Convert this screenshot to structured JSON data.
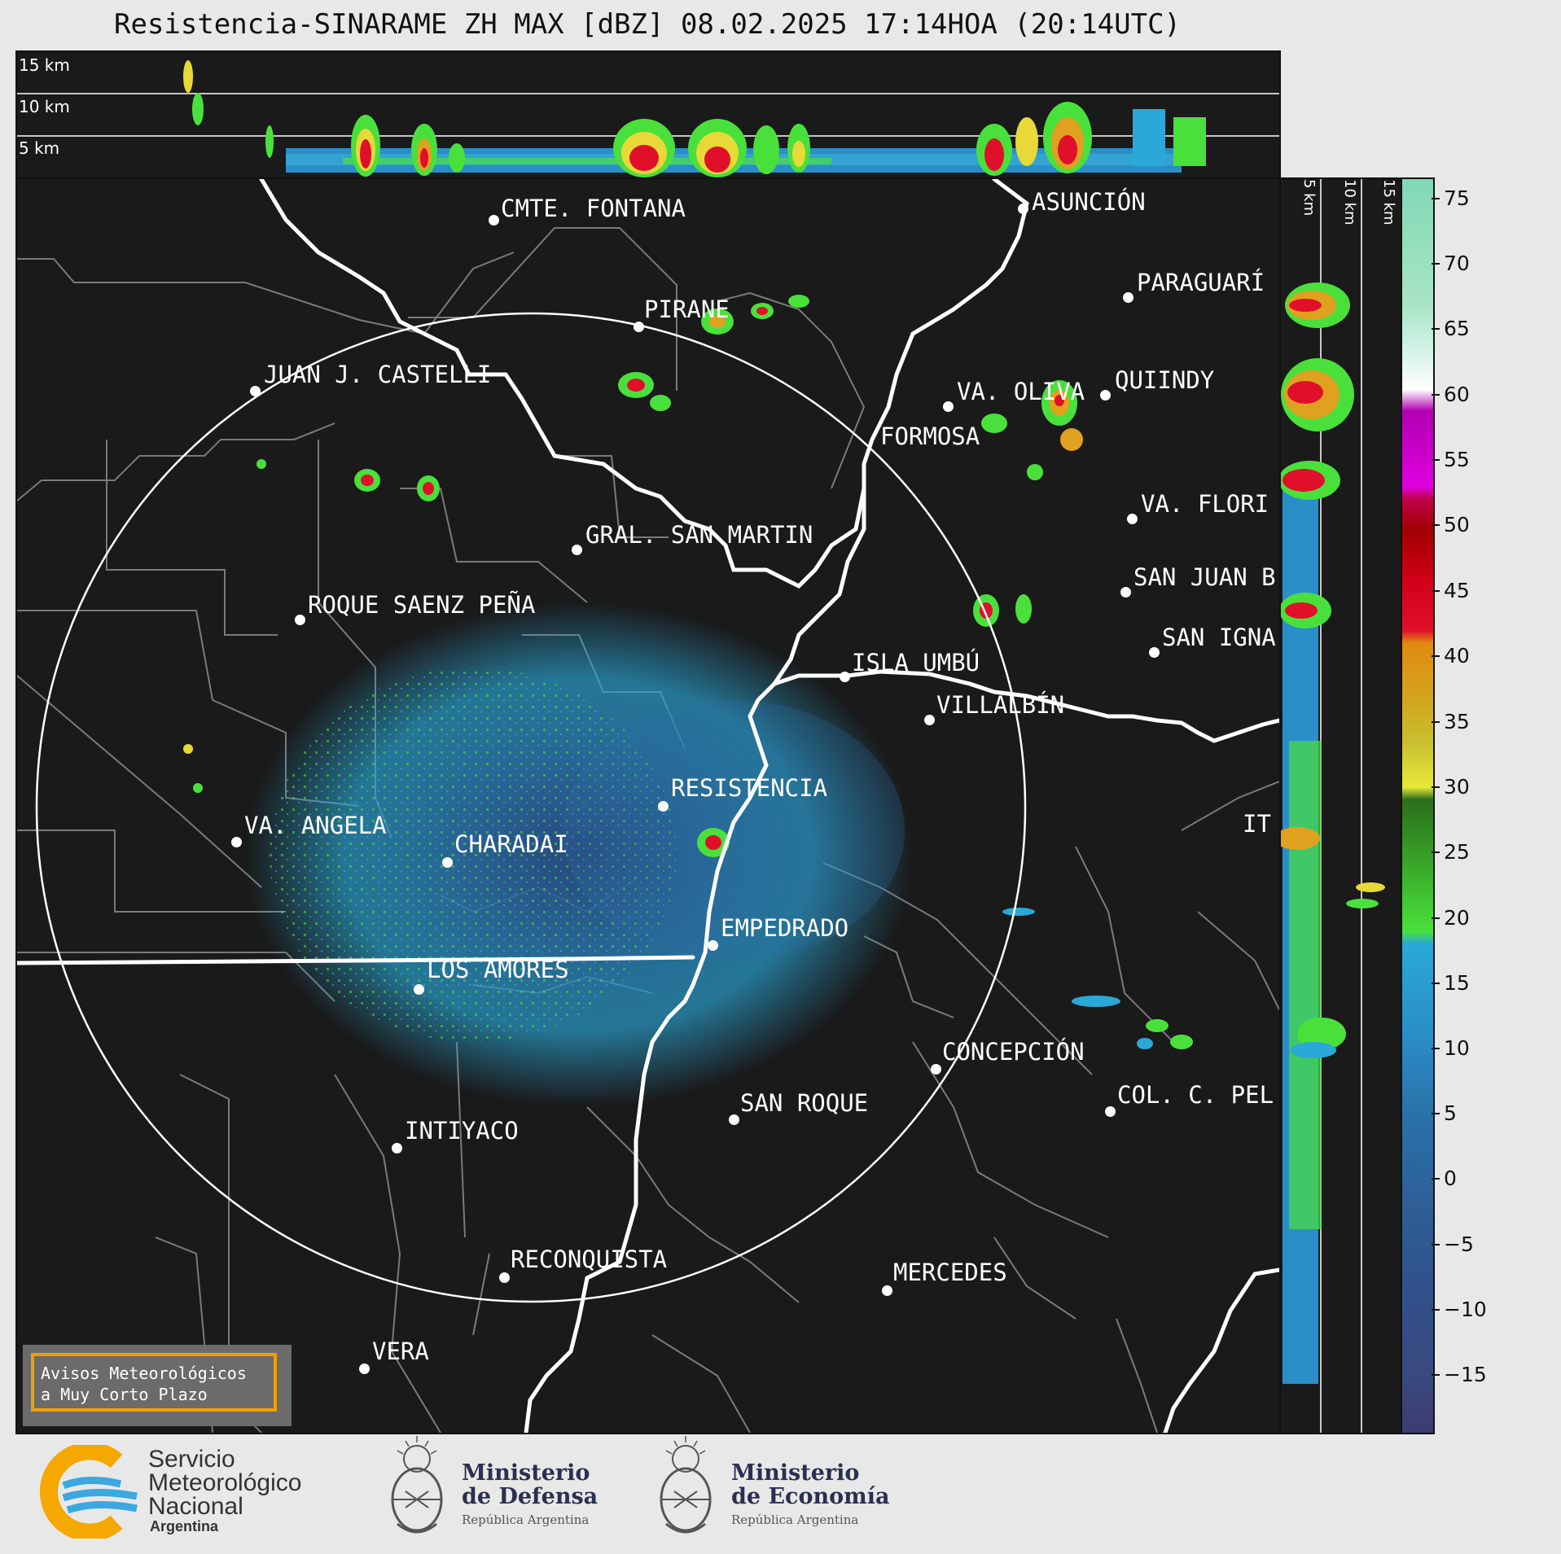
{
  "title": "Resistencia-SINARAME ZH MAX [dBZ] 08.02.2025 17:14HOA (20:14UTC)",
  "top_panel": {
    "altitude_labels": [
      "15 km",
      "10 km",
      "5 km"
    ]
  },
  "side_panel": {
    "altitude_labels": [
      "5 km",
      "10 km",
      "15 km"
    ]
  },
  "colorbar": {
    "unit": "dBZ",
    "ticks": [
      "75",
      "70",
      "65",
      "60",
      "55",
      "50",
      "45",
      "40",
      "35",
      "30",
      "25",
      "20",
      "15",
      "10",
      "5",
      "0",
      "−5",
      "−10",
      "−15"
    ],
    "colors": {
      "high_mint": "#7fd8b4",
      "white": "#ffffff",
      "magenta": "#d000d0",
      "dark_red": "#a00000",
      "red": "#e0102a",
      "orange": "#e08a10",
      "yellow": "#e8e838",
      "dark_green": "#2c6e1c",
      "bright_green": "#4ae03c",
      "light_blue": "#2aa8d8",
      "blue": "#2a70a8",
      "slate": "#3a4a80"
    }
  },
  "cities": [
    {
      "name": "CMTE. FONTANA"
    },
    {
      "name": "ASUNCIÓN"
    },
    {
      "name": "PARAGUARÍ"
    },
    {
      "name": "PIRANE"
    },
    {
      "name": "JUAN J. CASTELLI"
    },
    {
      "name": "VA. OLIVA"
    },
    {
      "name": "QUIINDY"
    },
    {
      "name": "FORMOSA"
    },
    {
      "name": "VA. FLORI"
    },
    {
      "name": "GRAL. SAN MARTIN"
    },
    {
      "name": "SAN JUAN B"
    },
    {
      "name": "ROQUE SAENZ PEÑA"
    },
    {
      "name": "SAN IGNA"
    },
    {
      "name": "ISLA UMBÚ"
    },
    {
      "name": "VILLALBÍN"
    },
    {
      "name": "RESISTENCIA"
    },
    {
      "name": "VA. ANGELA"
    },
    {
      "name": "CHARADAI"
    },
    {
      "name": "IT"
    },
    {
      "name": "EMPEDRADO"
    },
    {
      "name": "LOS AMORES"
    },
    {
      "name": "CONCEPCIÓN"
    },
    {
      "name": "SAN ROQUE"
    },
    {
      "name": "COL. C. PEL"
    },
    {
      "name": "INTIYACO"
    },
    {
      "name": "RECONQUISTA"
    },
    {
      "name": "MERCEDES"
    },
    {
      "name": "VERA"
    }
  ],
  "notice": {
    "line1": "Avisos Meteorológicos",
    "line2": "a Muy Corto Plazo"
  },
  "logos": {
    "smn_line1": "Servicio",
    "smn_line2": "Meteorológico",
    "smn_line3": "Nacional",
    "smn_country": "Argentina",
    "defensa_line1": "Ministerio",
    "defensa_line2": "de Defensa",
    "defensa_sub": "República Argentina",
    "economia_line1": "Ministerio",
    "economia_line2": "de Economía",
    "economia_sub": "República Argentina"
  }
}
